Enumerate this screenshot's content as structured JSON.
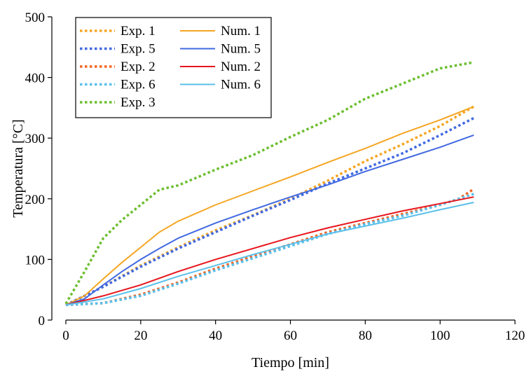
{
  "chart_data": {
    "type": "line",
    "xlabel": "Tiempo [min]",
    "ylabel": "Temperatura [°C]",
    "xlim": [
      0,
      120
    ],
    "ylim": [
      0,
      500
    ],
    "xticks": [
      0,
      20,
      40,
      60,
      80,
      100,
      120
    ],
    "yticks": [
      0,
      100,
      200,
      300,
      400,
      500
    ],
    "grid": false,
    "legend_position": "top-left",
    "series": [
      {
        "name": "Exp. 1",
        "style": "dotted",
        "color": "#F5A623",
        "x": [
          0,
          10,
          20,
          30,
          40,
          50,
          60,
          70,
          80,
          90,
          100,
          109
        ],
        "y": [
          25,
          55,
          90,
          120,
          148,
          173,
          200,
          230,
          262,
          290,
          320,
          352
        ]
      },
      {
        "name": "Exp. 5",
        "style": "dotted",
        "color": "#4169E1",
        "x": [
          0,
          10,
          20,
          30,
          40,
          50,
          60,
          70,
          80,
          90,
          100,
          109
        ],
        "y": [
          25,
          55,
          88,
          118,
          145,
          172,
          198,
          225,
          250,
          275,
          305,
          333
        ]
      },
      {
        "name": "Exp. 2",
        "style": "dotted",
        "color": "#F26522",
        "x": [
          0,
          10,
          20,
          30,
          40,
          50,
          60,
          70,
          80,
          90,
          100,
          105,
          109
        ],
        "y": [
          25,
          28,
          42,
          62,
          85,
          105,
          125,
          145,
          160,
          175,
          190,
          200,
          216
        ]
      },
      {
        "name": "Exp. 6",
        "style": "dotted",
        "color": "#5BC0EB",
        "x": [
          0,
          10,
          20,
          30,
          40,
          50,
          60,
          70,
          80,
          90,
          100,
          109
        ],
        "y": [
          25,
          28,
          40,
          60,
          82,
          102,
          122,
          142,
          158,
          172,
          190,
          208
        ]
      },
      {
        "name": "Exp. 3",
        "style": "dotted",
        "color": "#6CBE2F",
        "x": [
          0,
          5,
          10,
          15,
          20,
          25,
          30,
          40,
          50,
          60,
          70,
          80,
          90,
          100,
          109
        ],
        "y": [
          27,
          80,
          135,
          165,
          190,
          215,
          222,
          248,
          272,
          302,
          330,
          365,
          390,
          415,
          425
        ]
      },
      {
        "name": "Num. 1",
        "style": "solid",
        "color": "#F5A623",
        "x": [
          0,
          5,
          10,
          15,
          20,
          25,
          30,
          40,
          50,
          60,
          70,
          80,
          90,
          100,
          109
        ],
        "y": [
          25,
          40,
          68,
          95,
          120,
          145,
          163,
          190,
          213,
          236,
          260,
          283,
          308,
          330,
          352
        ]
      },
      {
        "name": "Num. 5",
        "style": "solid",
        "color": "#4169E1",
        "x": [
          0,
          5,
          10,
          15,
          20,
          25,
          30,
          40,
          50,
          60,
          70,
          80,
          90,
          100,
          109
        ],
        "y": [
          25,
          35,
          58,
          80,
          100,
          118,
          135,
          160,
          182,
          203,
          223,
          245,
          265,
          285,
          305
        ]
      },
      {
        "name": "Num. 2",
        "style": "solid",
        "color": "#E8141C",
        "x": [
          0,
          10,
          20,
          30,
          40,
          50,
          60,
          70,
          80,
          90,
          100,
          109
        ],
        "y": [
          25,
          40,
          58,
          80,
          100,
          118,
          136,
          152,
          166,
          180,
          192,
          203
        ]
      },
      {
        "name": "Num. 6",
        "style": "solid",
        "color": "#5BC0EB",
        "x": [
          0,
          10,
          20,
          30,
          40,
          50,
          60,
          70,
          80,
          90,
          100,
          109
        ],
        "y": [
          25,
          35,
          52,
          72,
          90,
          108,
          125,
          142,
          155,
          168,
          182,
          194
        ]
      }
    ]
  }
}
